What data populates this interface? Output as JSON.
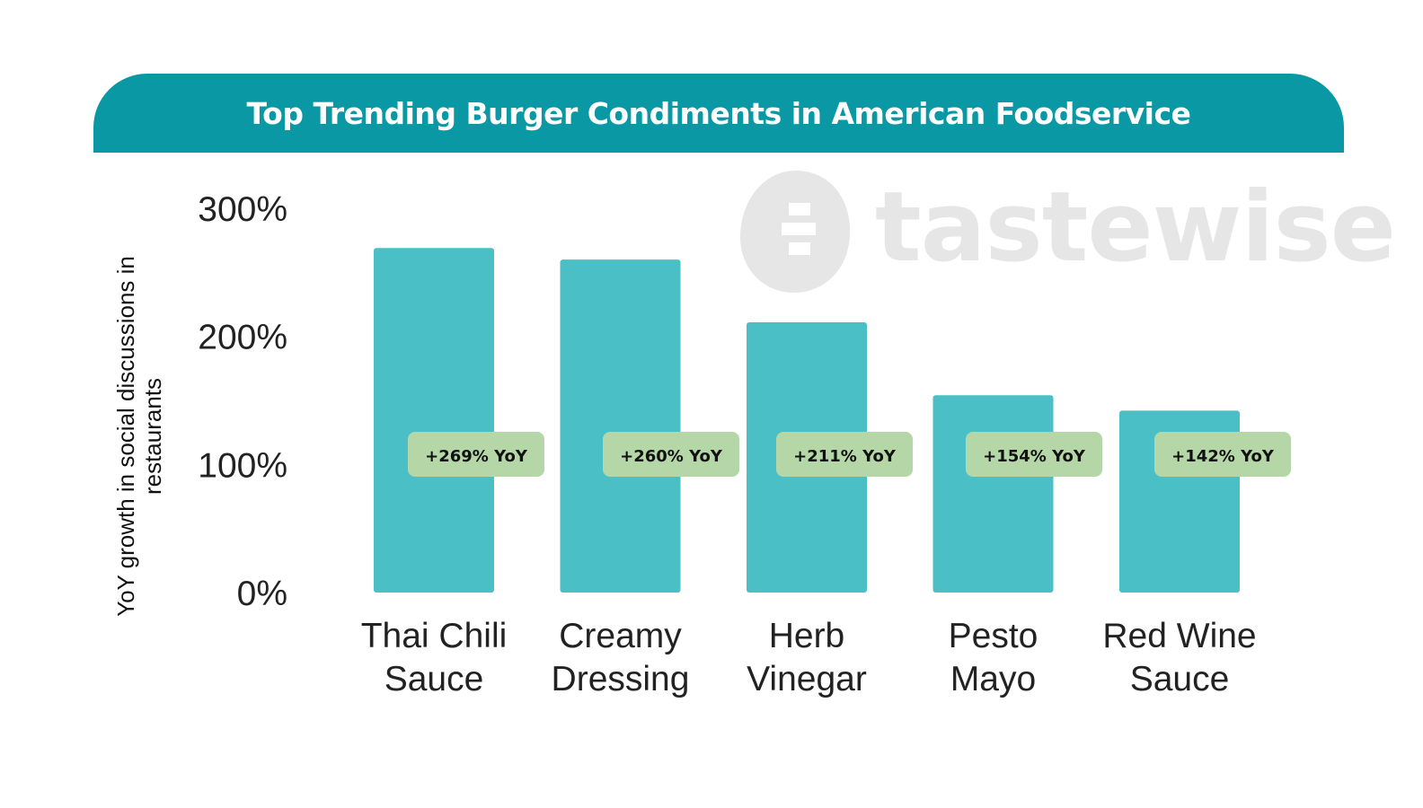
{
  "header": {
    "title": "Top Trending Burger Condiments in American Foodservice"
  },
  "watermark": {
    "brand": "tastewise",
    "icon": "tastewise-logo-icon",
    "color": "#e6e6e6"
  },
  "colors": {
    "header_bg": "#0a98a5",
    "bar": "#4abfc6",
    "badge": "#b5d6a7"
  },
  "chart_data": {
    "type": "bar",
    "title": "Top Trending Burger Condiments in American Foodservice",
    "ylabel": "YoY growth in social discussions in restaurants",
    "xlabel": "",
    "ylim": [
      0,
      300
    ],
    "yticks": [
      0,
      100,
      200,
      300
    ],
    "ytick_labels": [
      "0%",
      "100%",
      "200%",
      "300%"
    ],
    "categories": [
      [
        "Thai Chili",
        "Sauce"
      ],
      [
        "Creamy",
        "Dressing"
      ],
      [
        "Herb",
        "Vinegar"
      ],
      [
        "Pesto",
        "Mayo"
      ],
      [
        "Red Wine",
        "Sauce"
      ]
    ],
    "values": [
      269,
      260,
      211,
      154,
      142
    ],
    "data_labels": [
      "+269% YoY",
      "+260% YoY",
      "+211% YoY",
      "+154% YoY",
      "+142% YoY"
    ],
    "grid": false,
    "legend": "none"
  }
}
